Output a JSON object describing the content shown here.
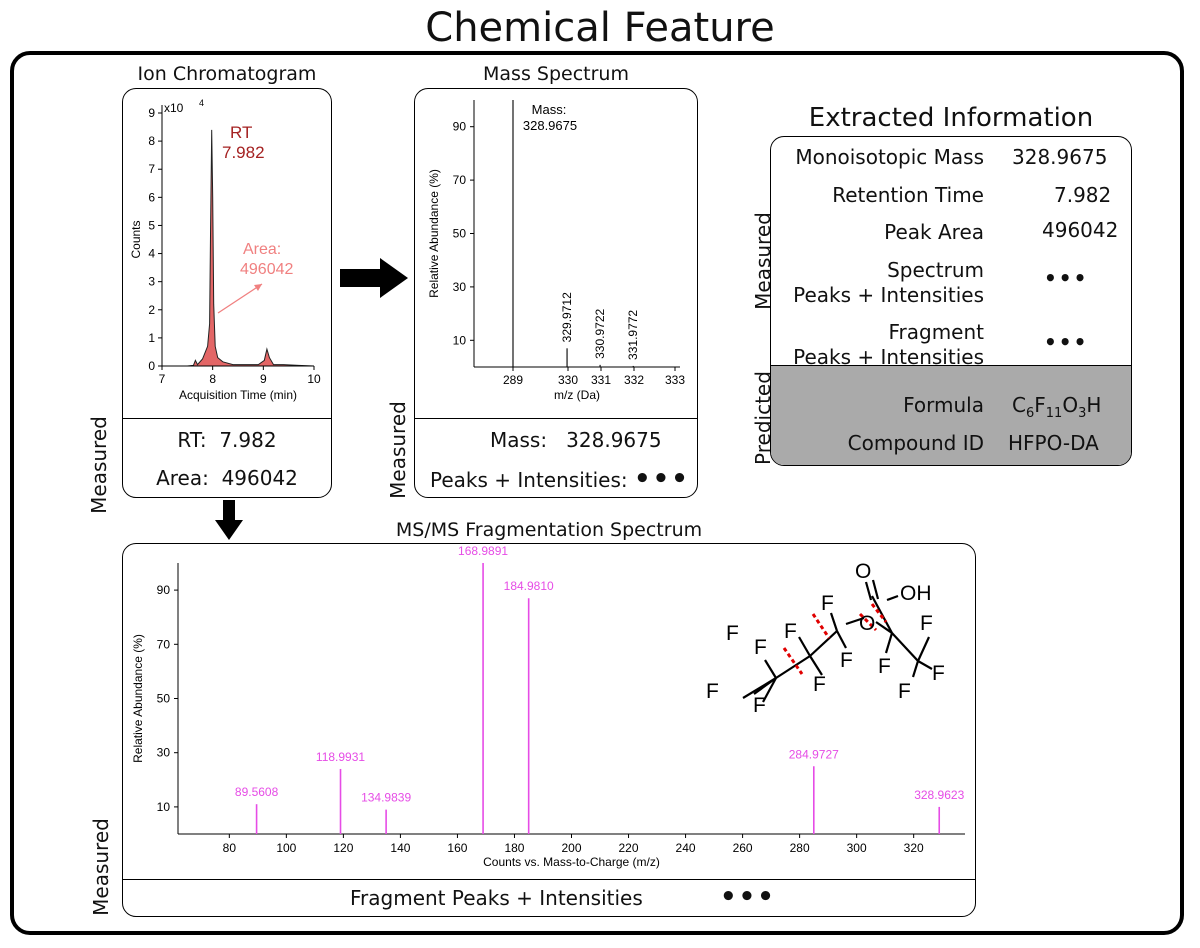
{
  "title": "Chemical Feature",
  "measured_label": "Measured",
  "predicted_label": "Predicted",
  "ion_chromatogram": {
    "title": "Ion Chromatogram",
    "y_label": "Counts",
    "x_label": "Acquisition Time (min)",
    "scale_label": "x10",
    "scale_exp": "4",
    "rt_text": "RT",
    "rt_value": "7.982",
    "area_text": "Area:",
    "area_value": "496042",
    "summary_rt_label": "RT:",
    "summary_rt_value": "7.982",
    "summary_area_label": "Area:",
    "summary_area_value": "496042",
    "colors": {
      "peak": "#e05555",
      "rt": "#a42121",
      "area": "#f08080"
    }
  },
  "mass_spectrum": {
    "title": "Mass Spectrum",
    "annotation_label": "Mass:",
    "annotation_value": "328.9675",
    "summary_mass_label": "Mass:",
    "summary_mass_value": "328.9675",
    "summary_peaks_label": "Peaks + Intensities:",
    "summary_peaks_value": "•••"
  },
  "extracted": {
    "title": "Extracted Information",
    "measured_rows": [
      {
        "label": "Monoisotopic Mass",
        "value": "328.9675"
      },
      {
        "label": "Retention Time",
        "value": "7.982"
      },
      {
        "label": "Peak Area",
        "value": "496042"
      },
      {
        "label_line1": "Spectrum",
        "label_line2": "Peaks + Intensities",
        "value": "•••"
      },
      {
        "label_line1": "Fragment",
        "label_line2": "Peaks + Intensities",
        "value": "•••"
      }
    ],
    "predicted_rows": [
      {
        "label": "Formula",
        "value_parts": [
          "C",
          "6",
          "F",
          "11",
          "O",
          "3",
          "H"
        ]
      },
      {
        "label": "Compound ID",
        "value": "HFPO-DA"
      }
    ],
    "predicted_bg": "#aaaaaa"
  },
  "msms": {
    "title": "MS/MS Fragmentation Spectrum",
    "summary_label": "Fragment Peaks + Intensities",
    "summary_value": "•••",
    "structure_atoms": [
      "F",
      "O",
      "OH"
    ]
  },
  "chart_data": [
    {
      "type": "line",
      "id": "ion_chromatogram",
      "xlabel": "Acquisition Time (min)",
      "ylabel": "Counts",
      "xlim": [
        7,
        10
      ],
      "ylim": [
        0,
        9
      ],
      "x_ticks": [
        7,
        8,
        9,
        10
      ],
      "y_ticks": [
        0,
        1,
        2,
        3,
        4,
        5,
        6,
        7,
        8,
        9
      ],
      "y_scale_note": "x10^4",
      "x": [
        7.0,
        7.5,
        7.62,
        7.66,
        7.7,
        7.8,
        7.9,
        7.94,
        7.96,
        7.98,
        8.0,
        8.02,
        8.05,
        8.1,
        8.2,
        8.4,
        8.6,
        8.9,
        9.02,
        9.07,
        9.12,
        9.2,
        9.4,
        9.7,
        10.0
      ],
      "y": [
        0.0,
        0.0,
        0.02,
        0.2,
        0.05,
        0.25,
        0.7,
        1.5,
        5.0,
        8.4,
        6.0,
        2.2,
        0.7,
        0.3,
        0.15,
        0.05,
        0.05,
        0.05,
        0.2,
        0.6,
        0.3,
        0.05,
        0.05,
        0.02,
        0.0
      ],
      "series_color": "#e05555",
      "annotations": [
        {
          "text": "RT",
          "value": "7.982",
          "x": 7.982
        },
        {
          "text": "Area:",
          "value": "496042"
        }
      ]
    },
    {
      "type": "bar",
      "id": "mass_spectrum",
      "xlabel": "m/z (Da)",
      "ylabel": "Relative Abundance (%)",
      "x_ticks": [
        "289",
        "330",
        "331",
        "332",
        "333"
      ],
      "y_ticks": [
        10,
        30,
        50,
        70,
        90
      ],
      "ylim": [
        0,
        100
      ],
      "peaks": [
        {
          "x": 328.9675,
          "y": 100,
          "label": ""
        },
        {
          "x": 329.9712,
          "y": 7,
          "label": "329.9712"
        },
        {
          "x": 330.9722,
          "y": 0.8,
          "label": "330.9722"
        },
        {
          "x": 331.9772,
          "y": 0.3,
          "label": "331.9772"
        }
      ]
    },
    {
      "type": "bar",
      "id": "msms",
      "xlabel": "Counts vs. Mass-to-Charge (m/z)",
      "ylabel": "Relative Abundance (%)",
      "xlim": [
        62,
        338
      ],
      "ylim": [
        0,
        100
      ],
      "x_ticks": [
        80,
        100,
        120,
        140,
        160,
        180,
        200,
        220,
        240,
        260,
        280,
        300,
        320
      ],
      "y_ticks": [
        10,
        30,
        50,
        70,
        90
      ],
      "series_color": "#e64ce6",
      "peaks": [
        {
          "x": 89.5608,
          "y": 11,
          "label": "89.5608"
        },
        {
          "x": 118.9931,
          "y": 24,
          "label": "118.9931"
        },
        {
          "x": 134.9839,
          "y": 9,
          "label": "134.9839"
        },
        {
          "x": 168.9891,
          "y": 100,
          "label": "168.9891"
        },
        {
          "x": 184.981,
          "y": 87,
          "label": "184.9810"
        },
        {
          "x": 284.9727,
          "y": 25,
          "label": "284.9727"
        },
        {
          "x": 328.9623,
          "y": 10,
          "label": "328.9623"
        }
      ]
    }
  ]
}
